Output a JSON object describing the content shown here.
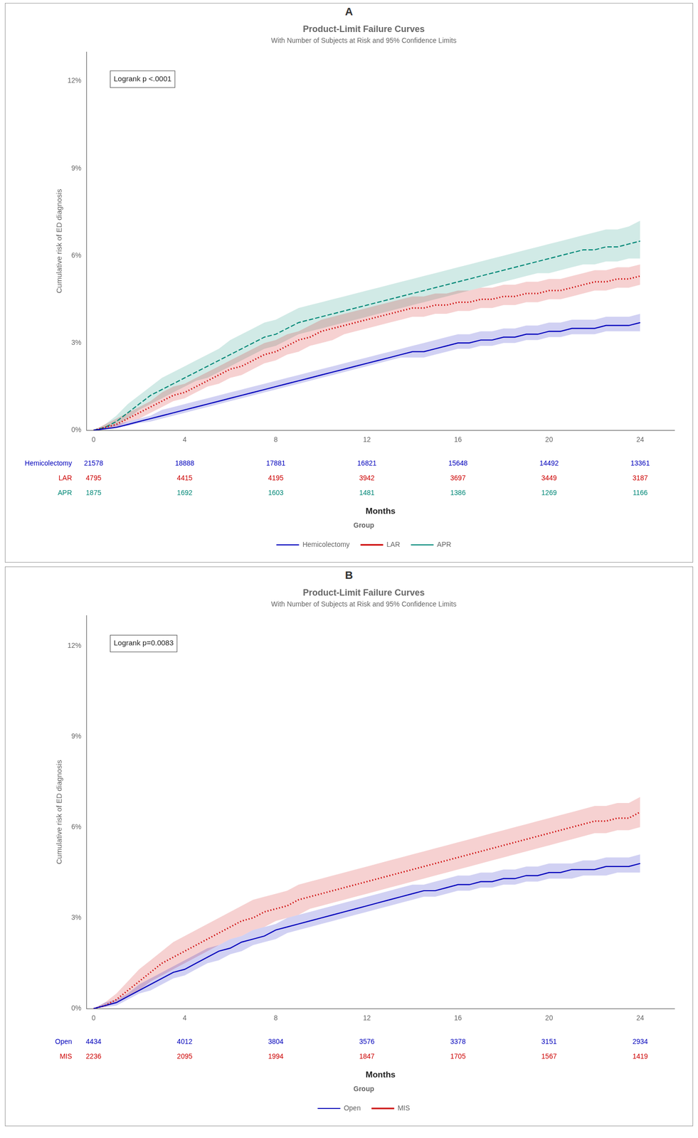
{
  "chart_data": [
    {
      "type": "line",
      "panel_label": "A",
      "title": "Product-Limit Failure Curves",
      "subtitle": "With Number of Subjects at Risk and 95% Confidence Limits",
      "annotations": [
        "Logrank p <.0001"
      ],
      "x_label": "Months",
      "y_label": "Cumulative risk of ED diagnosis",
      "xlim": [
        -0.3,
        25.5
      ],
      "xticks": [
        0,
        4,
        8,
        12,
        16,
        20,
        24
      ],
      "ylim": [
        0,
        0.13
      ],
      "yticks": [
        {
          "value": 0,
          "label": "0%"
        },
        {
          "value": 0.03,
          "label": "3%"
        },
        {
          "value": 0.06,
          "label": "6%"
        },
        {
          "value": 0.09,
          "label": "9%"
        },
        {
          "value": 0.12,
          "label": "12%"
        }
      ],
      "grid": false,
      "legend": "bottom",
      "legend_title": "Group",
      "x": [
        0,
        0.5,
        1,
        1.5,
        2,
        2.5,
        3,
        3.5,
        4,
        4.5,
        5,
        5.5,
        6,
        6.5,
        7,
        7.5,
        8,
        8.5,
        9,
        9.5,
        10,
        10.5,
        11,
        11.5,
        12,
        12.5,
        13,
        13.5,
        14,
        14.5,
        15,
        15.5,
        16,
        16.5,
        17,
        17.5,
        18,
        18.5,
        19,
        19.5,
        20,
        20.5,
        21,
        21.5,
        22,
        22.5,
        23,
        23.5,
        24
      ],
      "series": [
        {
          "name": "Hemicolectomy",
          "color": "#0000bb",
          "line_style": "solid",
          "values": [
            0,
            0.0005,
            0.001,
            0.002,
            0.003,
            0.004,
            0.005,
            0.006,
            0.007,
            0.008,
            0.009,
            0.01,
            0.011,
            0.012,
            0.013,
            0.014,
            0.015,
            0.016,
            0.017,
            0.018,
            0.019,
            0.02,
            0.021,
            0.022,
            0.023,
            0.024,
            0.025,
            0.026,
            0.027,
            0.027,
            0.028,
            0.029,
            0.03,
            0.03,
            0.031,
            0.031,
            0.032,
            0.032,
            0.033,
            0.033,
            0.034,
            0.034,
            0.035,
            0.035,
            0.035,
            0.036,
            0.036,
            0.036,
            0.037
          ],
          "ci_low": [
            0,
            0.0003,
            0.0007,
            0.0015,
            0.0025,
            0.003,
            0.004,
            0.005,
            0.006,
            0.007,
            0.008,
            0.009,
            0.01,
            0.011,
            0.012,
            0.013,
            0.014,
            0.015,
            0.016,
            0.017,
            0.018,
            0.019,
            0.02,
            0.021,
            0.022,
            0.023,
            0.024,
            0.025,
            0.025,
            0.025,
            0.026,
            0.027,
            0.028,
            0.028,
            0.029,
            0.029,
            0.03,
            0.03,
            0.031,
            0.031,
            0.032,
            0.032,
            0.033,
            0.033,
            0.033,
            0.034,
            0.034,
            0.034,
            0.034
          ],
          "ci_high": [
            0,
            0.001,
            0.002,
            0.003,
            0.004,
            0.005,
            0.007,
            0.008,
            0.009,
            0.01,
            0.011,
            0.012,
            0.013,
            0.014,
            0.015,
            0.016,
            0.017,
            0.018,
            0.019,
            0.02,
            0.021,
            0.022,
            0.023,
            0.024,
            0.025,
            0.026,
            0.027,
            0.028,
            0.029,
            0.03,
            0.031,
            0.032,
            0.033,
            0.033,
            0.034,
            0.034,
            0.035,
            0.035,
            0.036,
            0.036,
            0.037,
            0.037,
            0.038,
            0.038,
            0.038,
            0.039,
            0.039,
            0.039,
            0.04
          ],
          "n_at_risk": [
            21578,
            18888,
            17881,
            16821,
            15648,
            14492,
            13361
          ]
        },
        {
          "name": "LAR",
          "color": "#cc0000",
          "line_style": "dotted",
          "values": [
            0,
            0.001,
            0.002,
            0.004,
            0.006,
            0.008,
            0.01,
            0.012,
            0.013,
            0.015,
            0.017,
            0.019,
            0.021,
            0.022,
            0.024,
            0.026,
            0.027,
            0.029,
            0.031,
            0.032,
            0.034,
            0.035,
            0.036,
            0.037,
            0.038,
            0.039,
            0.04,
            0.041,
            0.042,
            0.042,
            0.043,
            0.043,
            0.044,
            0.044,
            0.045,
            0.045,
            0.046,
            0.046,
            0.047,
            0.047,
            0.048,
            0.048,
            0.049,
            0.05,
            0.051,
            0.051,
            0.052,
            0.052,
            0.053
          ],
          "ci_low": [
            0,
            0.0005,
            0.001,
            0.003,
            0.004,
            0.006,
            0.008,
            0.01,
            0.011,
            0.013,
            0.015,
            0.016,
            0.018,
            0.019,
            0.021,
            0.023,
            0.024,
            0.026,
            0.027,
            0.029,
            0.03,
            0.031,
            0.033,
            0.034,
            0.035,
            0.036,
            0.037,
            0.038,
            0.039,
            0.039,
            0.04,
            0.04,
            0.041,
            0.041,
            0.042,
            0.042,
            0.043,
            0.043,
            0.044,
            0.044,
            0.045,
            0.045,
            0.046,
            0.047,
            0.048,
            0.048,
            0.049,
            0.049,
            0.05
          ],
          "ci_high": [
            0,
            0.002,
            0.004,
            0.006,
            0.008,
            0.01,
            0.013,
            0.015,
            0.016,
            0.018,
            0.02,
            0.022,
            0.024,
            0.026,
            0.028,
            0.03,
            0.031,
            0.033,
            0.034,
            0.036,
            0.038,
            0.039,
            0.04,
            0.041,
            0.042,
            0.043,
            0.044,
            0.045,
            0.046,
            0.046,
            0.047,
            0.047,
            0.048,
            0.048,
            0.049,
            0.049,
            0.05,
            0.05,
            0.051,
            0.051,
            0.052,
            0.052,
            0.053,
            0.054,
            0.055,
            0.055,
            0.056,
            0.056,
            0.057
          ],
          "n_at_risk": [
            4795,
            4415,
            4195,
            3942,
            3697,
            3449,
            3187
          ]
        },
        {
          "name": "APR",
          "color": "#008877",
          "line_style": "dashed",
          "values": [
            0,
            0.001,
            0.003,
            0.006,
            0.009,
            0.012,
            0.014,
            0.016,
            0.018,
            0.02,
            0.022,
            0.024,
            0.026,
            0.028,
            0.03,
            0.032,
            0.033,
            0.035,
            0.037,
            0.038,
            0.039,
            0.04,
            0.041,
            0.042,
            0.043,
            0.044,
            0.045,
            0.046,
            0.047,
            0.048,
            0.049,
            0.05,
            0.051,
            0.052,
            0.053,
            0.054,
            0.055,
            0.056,
            0.057,
            0.058,
            0.059,
            0.06,
            0.061,
            0.062,
            0.062,
            0.063,
            0.063,
            0.064,
            0.065
          ],
          "ci_low": [
            0,
            0.0005,
            0.002,
            0.004,
            0.007,
            0.009,
            0.011,
            0.013,
            0.015,
            0.017,
            0.018,
            0.02,
            0.022,
            0.024,
            0.026,
            0.028,
            0.029,
            0.031,
            0.033,
            0.034,
            0.035,
            0.036,
            0.037,
            0.038,
            0.039,
            0.04,
            0.041,
            0.042,
            0.043,
            0.044,
            0.045,
            0.046,
            0.047,
            0.048,
            0.049,
            0.05,
            0.051,
            0.052,
            0.053,
            0.054,
            0.054,
            0.055,
            0.056,
            0.057,
            0.057,
            0.058,
            0.058,
            0.059,
            0.059
          ],
          "ci_high": [
            0,
            0.002,
            0.005,
            0.009,
            0.012,
            0.015,
            0.018,
            0.02,
            0.022,
            0.024,
            0.026,
            0.028,
            0.031,
            0.033,
            0.035,
            0.037,
            0.038,
            0.04,
            0.042,
            0.043,
            0.044,
            0.045,
            0.046,
            0.047,
            0.048,
            0.049,
            0.05,
            0.051,
            0.052,
            0.053,
            0.054,
            0.055,
            0.056,
            0.057,
            0.058,
            0.059,
            0.06,
            0.061,
            0.062,
            0.063,
            0.064,
            0.065,
            0.066,
            0.067,
            0.068,
            0.069,
            0.069,
            0.07,
            0.072
          ],
          "n_at_risk": [
            1875,
            1692,
            1603,
            1481,
            1386,
            1269,
            1166
          ]
        }
      ]
    },
    {
      "type": "line",
      "panel_label": "B",
      "title": "Product-Limit Failure Curves",
      "subtitle": "With Number of Subjects at Risk and 95% Confidence Limits",
      "annotations": [
        "Logrank p=0.0083"
      ],
      "x_label": "Months",
      "y_label": "Cumulative risk of ED diagnosis",
      "xlim": [
        -0.3,
        25.5
      ],
      "xticks": [
        0,
        4,
        8,
        12,
        16,
        20,
        24
      ],
      "ylim": [
        0,
        0.13
      ],
      "yticks": [
        {
          "value": 0,
          "label": "0%"
        },
        {
          "value": 0.03,
          "label": "3%"
        },
        {
          "value": 0.06,
          "label": "6%"
        },
        {
          "value": 0.09,
          "label": "9%"
        },
        {
          "value": 0.12,
          "label": "12%"
        }
      ],
      "grid": false,
      "legend": "bottom",
      "legend_title": "Group",
      "x": [
        0,
        0.5,
        1,
        1.5,
        2,
        2.5,
        3,
        3.5,
        4,
        4.5,
        5,
        5.5,
        6,
        6.5,
        7,
        7.5,
        8,
        8.5,
        9,
        9.5,
        10,
        10.5,
        11,
        11.5,
        12,
        12.5,
        13,
        13.5,
        14,
        14.5,
        15,
        15.5,
        16,
        16.5,
        17,
        17.5,
        18,
        18.5,
        19,
        19.5,
        20,
        20.5,
        21,
        21.5,
        22,
        22.5,
        23,
        23.5,
        24
      ],
      "series": [
        {
          "name": "Open",
          "color": "#0000bb",
          "line_style": "solid",
          "values": [
            0,
            0.001,
            0.002,
            0.004,
            0.006,
            0.008,
            0.01,
            0.012,
            0.013,
            0.015,
            0.017,
            0.019,
            0.02,
            0.022,
            0.023,
            0.024,
            0.026,
            0.027,
            0.028,
            0.029,
            0.03,
            0.031,
            0.032,
            0.033,
            0.034,
            0.035,
            0.036,
            0.037,
            0.038,
            0.039,
            0.039,
            0.04,
            0.041,
            0.041,
            0.042,
            0.042,
            0.043,
            0.043,
            0.044,
            0.044,
            0.045,
            0.045,
            0.046,
            0.046,
            0.046,
            0.047,
            0.047,
            0.047,
            0.048
          ],
          "ci_low": [
            0,
            0.0005,
            0.001,
            0.003,
            0.005,
            0.006,
            0.008,
            0.01,
            0.011,
            0.013,
            0.015,
            0.016,
            0.018,
            0.019,
            0.021,
            0.022,
            0.023,
            0.025,
            0.026,
            0.027,
            0.028,
            0.029,
            0.03,
            0.031,
            0.032,
            0.033,
            0.034,
            0.035,
            0.036,
            0.037,
            0.037,
            0.038,
            0.039,
            0.039,
            0.04,
            0.04,
            0.041,
            0.041,
            0.042,
            0.042,
            0.043,
            0.043,
            0.043,
            0.044,
            0.044,
            0.044,
            0.045,
            0.045,
            0.045
          ],
          "ci_high": [
            0,
            0.002,
            0.003,
            0.005,
            0.008,
            0.01,
            0.012,
            0.014,
            0.016,
            0.018,
            0.02,
            0.021,
            0.023,
            0.024,
            0.026,
            0.027,
            0.028,
            0.03,
            0.031,
            0.032,
            0.033,
            0.034,
            0.035,
            0.036,
            0.037,
            0.038,
            0.039,
            0.04,
            0.041,
            0.041,
            0.042,
            0.043,
            0.044,
            0.044,
            0.045,
            0.045,
            0.046,
            0.046,
            0.047,
            0.047,
            0.048,
            0.048,
            0.048,
            0.049,
            0.049,
            0.05,
            0.05,
            0.05,
            0.051
          ],
          "n_at_risk": [
            4434,
            4012,
            3804,
            3576,
            3378,
            3151,
            2934
          ]
        },
        {
          "name": "MIS",
          "color": "#cc0000",
          "line_style": "dotted",
          "values": [
            0,
            0.001,
            0.003,
            0.006,
            0.009,
            0.012,
            0.015,
            0.017,
            0.019,
            0.021,
            0.023,
            0.025,
            0.027,
            0.029,
            0.03,
            0.032,
            0.033,
            0.034,
            0.036,
            0.037,
            0.038,
            0.039,
            0.04,
            0.041,
            0.042,
            0.043,
            0.044,
            0.045,
            0.046,
            0.047,
            0.048,
            0.049,
            0.05,
            0.051,
            0.052,
            0.053,
            0.054,
            0.055,
            0.056,
            0.057,
            0.058,
            0.059,
            0.06,
            0.061,
            0.062,
            0.062,
            0.063,
            0.063,
            0.065
          ],
          "ci_low": [
            0,
            0.0005,
            0.002,
            0.004,
            0.006,
            0.009,
            0.011,
            0.013,
            0.015,
            0.017,
            0.019,
            0.021,
            0.023,
            0.024,
            0.026,
            0.027,
            0.029,
            0.03,
            0.031,
            0.033,
            0.034,
            0.035,
            0.036,
            0.037,
            0.038,
            0.039,
            0.04,
            0.041,
            0.042,
            0.043,
            0.044,
            0.045,
            0.046,
            0.047,
            0.048,
            0.049,
            0.05,
            0.051,
            0.052,
            0.053,
            0.054,
            0.055,
            0.056,
            0.057,
            0.058,
            0.058,
            0.059,
            0.059,
            0.06
          ],
          "ci_high": [
            0,
            0.002,
            0.005,
            0.009,
            0.013,
            0.016,
            0.019,
            0.022,
            0.024,
            0.026,
            0.028,
            0.03,
            0.032,
            0.034,
            0.036,
            0.037,
            0.038,
            0.039,
            0.041,
            0.042,
            0.043,
            0.044,
            0.045,
            0.046,
            0.047,
            0.048,
            0.049,
            0.05,
            0.051,
            0.052,
            0.053,
            0.054,
            0.055,
            0.056,
            0.057,
            0.058,
            0.059,
            0.06,
            0.061,
            0.062,
            0.063,
            0.064,
            0.065,
            0.066,
            0.067,
            0.067,
            0.068,
            0.068,
            0.07
          ],
          "n_at_risk": [
            2236,
            2095,
            1994,
            1847,
            1705,
            1567,
            1419
          ]
        }
      ]
    }
  ]
}
